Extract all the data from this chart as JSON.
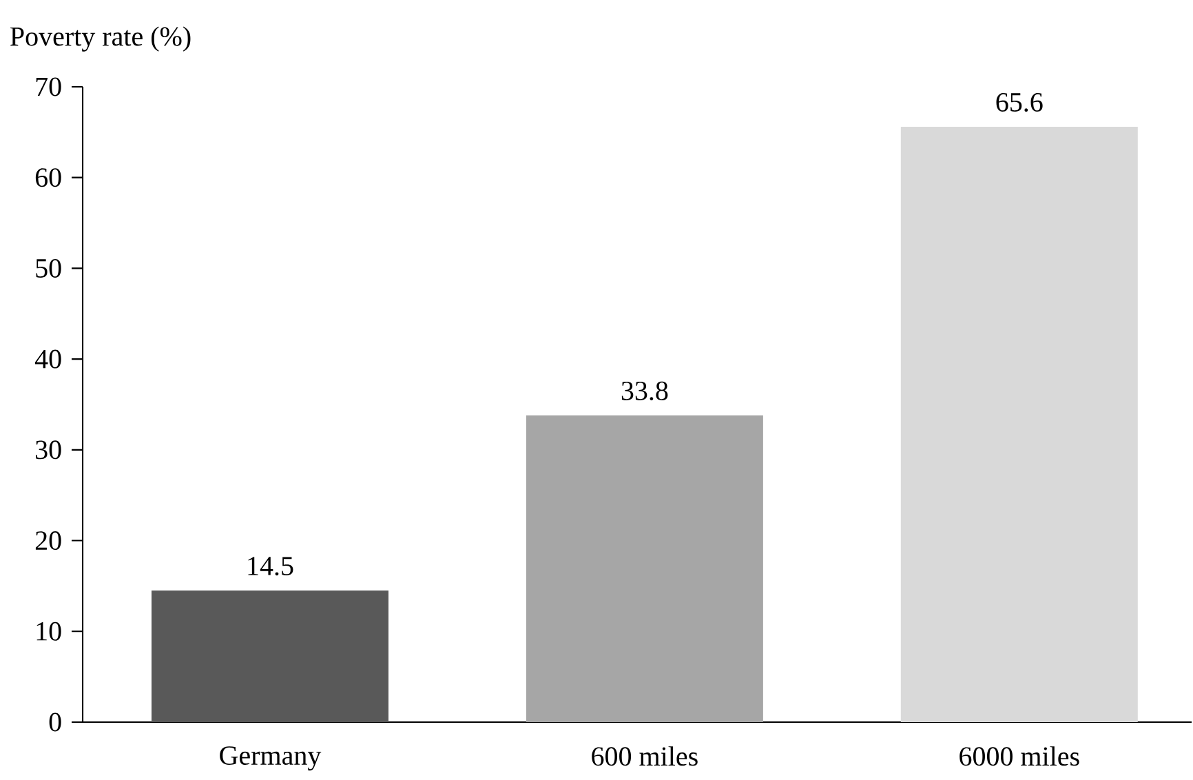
{
  "chart_data": {
    "type": "bar",
    "ylabel": "Poverty rate (%)",
    "categories": [
      "Germany",
      "600 miles",
      "6000 miles"
    ],
    "values": [
      14.5,
      33.8,
      65.6
    ],
    "colors": [
      "#595959",
      "#a6a6a6",
      "#d9d9d9"
    ],
    "ylim": [
      0,
      70
    ],
    "yticks": [
      0,
      10,
      20,
      30,
      40,
      50,
      60,
      70
    ],
    "data_labels": true,
    "grid": false
  }
}
